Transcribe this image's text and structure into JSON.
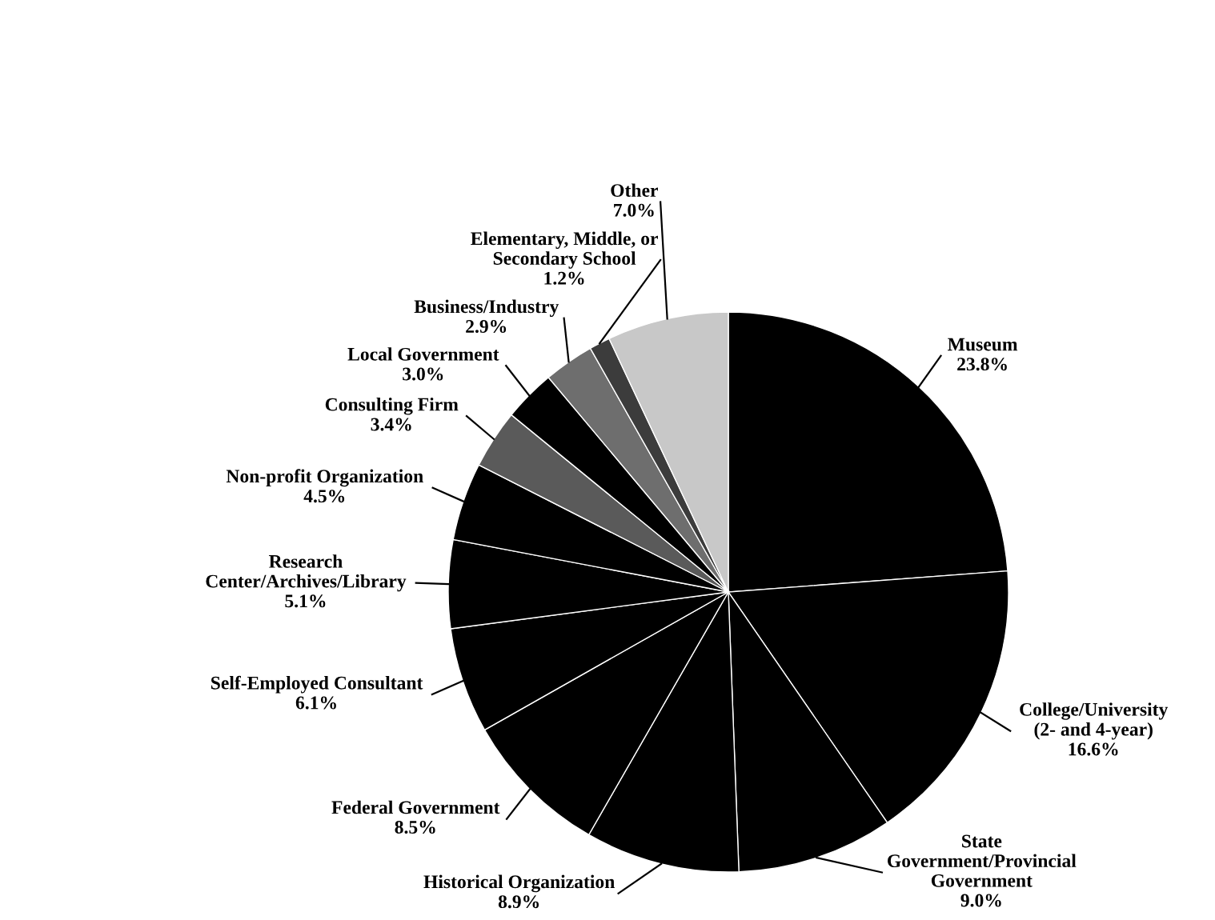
{
  "chart_data": {
    "type": "pie",
    "categories": [
      "Museum",
      "College/University\n(2- and 4-year)",
      "State\nGovernment/Provincial\nGovernment",
      "Historical Organization",
      "Federal Government",
      "Self-Employed Consultant",
      "Research\nCenter/Archives/Library",
      "Non-profit Organization",
      "Consulting Firm",
      "Local Government",
      "Business/Industry",
      "Elementary, Middle, or\nSecondary School",
      "Other"
    ],
    "values": [
      23.8,
      16.6,
      9.0,
      8.9,
      8.5,
      6.1,
      5.1,
      4.5,
      3.4,
      3.0,
      2.9,
      1.2,
      7.0
    ],
    "value_labels": [
      "23.8%",
      "16.6%",
      "9.0%",
      "8.9%",
      "8.5%",
      "6.1%",
      "5.1%",
      "4.5%",
      "3.4%",
      "3.0%",
      "2.9%",
      "1.2%",
      "7.0%"
    ],
    "colors": [
      "#000000",
      "#000000",
      "#000000",
      "#000000",
      "#000000",
      "#000000",
      "#000000",
      "#000000",
      "#5a5a5a",
      "#000000",
      "#6e6e6e",
      "#3c3c3c",
      "#c8c8c8"
    ]
  }
}
